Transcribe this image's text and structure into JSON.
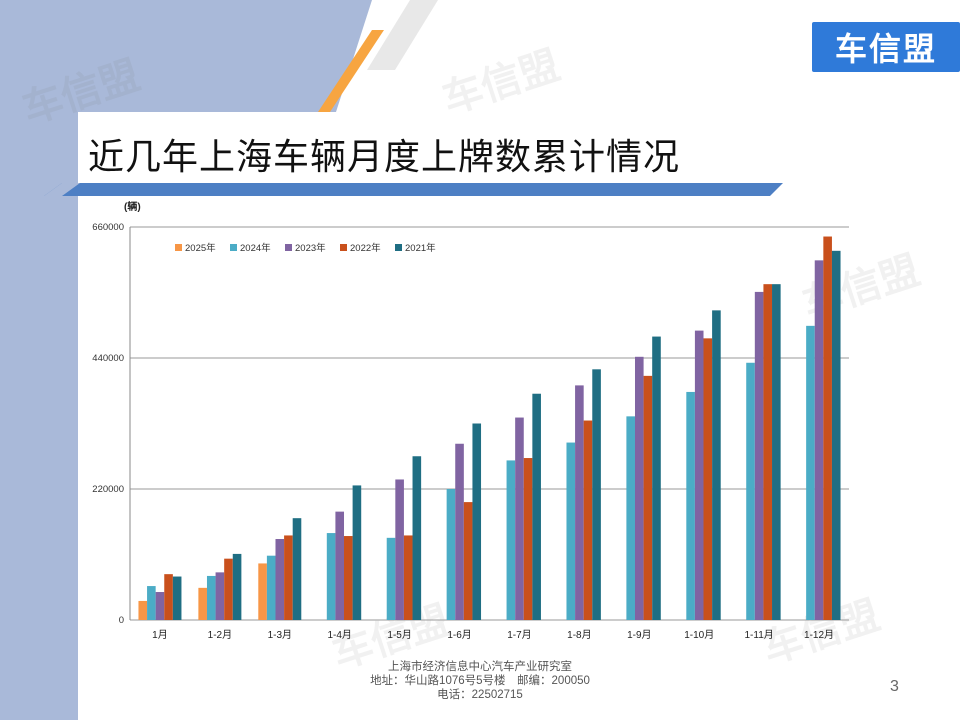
{
  "slide": {
    "title": "近几年上海车辆月度上牌数累计情况",
    "logo_text": "车信盟",
    "footer_line1": "上海市经济信息中心汽车产业研究室",
    "footer_line2": "地址：华山路1076号5号楼　邮编：200050",
    "footer_line3": "电话：22502715",
    "page_number": "3",
    "watermark_text": "车信盟"
  },
  "colors": {
    "left_band": "#a9b9d9",
    "accent_orange": "#f7a541",
    "accent_blue": "#4d7fc4",
    "logo_bg": "#2f7ad9"
  },
  "chart_data": {
    "type": "bar",
    "unit_label": "(辆)",
    "categories": [
      "1月",
      "1-2月",
      "1-3月",
      "1-4月",
      "1-5月",
      "1-6月",
      "1-7月",
      "1-8月",
      "1-9月",
      "1-10月",
      "1-11月",
      "1-12月"
    ],
    "yticks": [
      "660000",
      "440000",
      "220000",
      "0"
    ],
    "ylim": [
      0,
      660000
    ],
    "grid": true,
    "legend_position": "top-left",
    "series": [
      {
        "name": "2025年",
        "color": "#f79646",
        "values": [
          32000,
          54000,
          95000,
          null,
          null,
          null,
          null,
          null,
          null,
          null,
          null,
          null
        ]
      },
      {
        "name": "2024年",
        "color": "#4bacc6",
        "values": [
          57000,
          74000,
          108000,
          146000,
          138000,
          220000,
          268000,
          298000,
          342000,
          383000,
          432000,
          494000
        ]
      },
      {
        "name": "2023年",
        "color": "#8064a2",
        "values": [
          47000,
          80000,
          136000,
          182000,
          236000,
          296000,
          340000,
          394000,
          442000,
          486000,
          551000,
          604000
        ]
      },
      {
        "name": "2022年",
        "color": "#c9501c",
        "values": [
          77000,
          103000,
          142000,
          141000,
          142000,
          198000,
          272000,
          335000,
          410000,
          473000,
          564000,
          644000
        ]
      },
      {
        "name": "2021年",
        "color": "#1f6e83",
        "values": [
          73000,
          111000,
          171000,
          226000,
          275000,
          330000,
          380000,
          421000,
          476000,
          520000,
          564000,
          620000
        ]
      }
    ]
  }
}
